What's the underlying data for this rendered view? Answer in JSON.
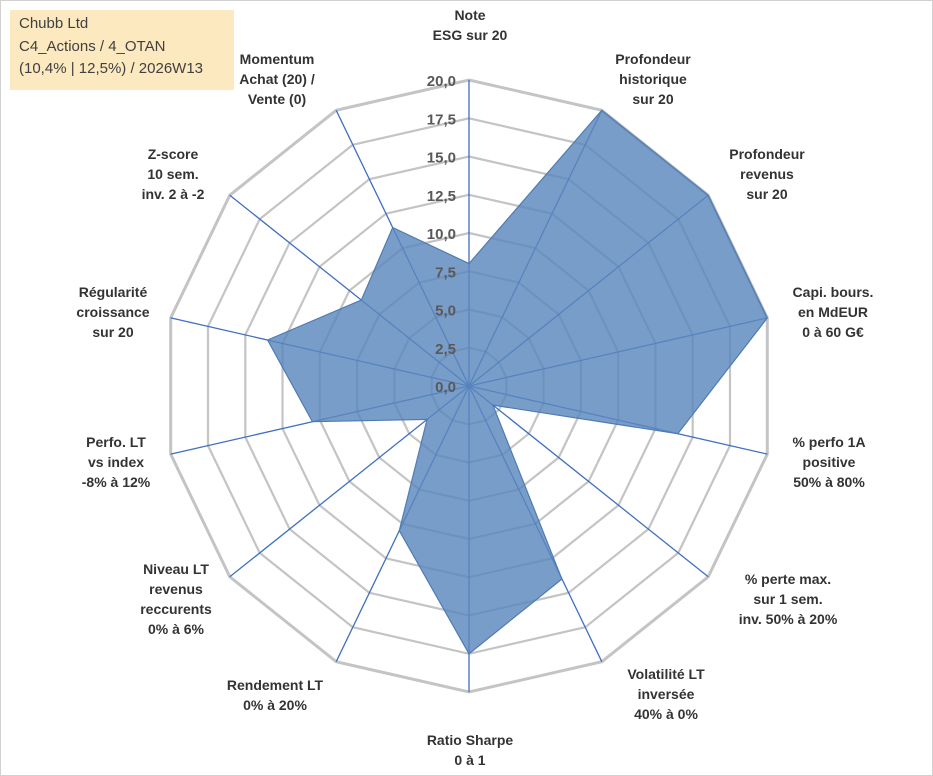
{
  "header": {
    "line1": "Chubb Ltd",
    "line2": "C4_Actions / 4_OTAN",
    "line3": "(10,4% | 12,5%) / 2026W13"
  },
  "colors": {
    "fill": "#5b88bd",
    "stroke": "#4f7bb3",
    "spoke": "#3f6fc0",
    "grid": "#c4c4c4",
    "header_bg": "#fde9c0"
  },
  "chart_data": {
    "type": "radar",
    "title": "",
    "range": [
      0,
      20
    ],
    "tick_step": 2.5,
    "tick_labels": [
      "0,0",
      "2,5",
      "5,0",
      "7,5",
      "10,0",
      "12,5",
      "15,0",
      "17,5",
      "20,0"
    ],
    "axes": [
      {
        "label": [
          "Note",
          "ESG sur 20"
        ],
        "value": 8
      },
      {
        "label": [
          "Profondeur",
          "historique",
          "sur 20"
        ],
        "value": 20
      },
      {
        "label": [
          "Profondeur",
          "revenus",
          "sur 20"
        ],
        "value": 20
      },
      {
        "label": [
          "Capi. bours.",
          "en MdEUR",
          "0 à 60 G€"
        ],
        "value": 20
      },
      {
        "label": [
          "% perfo 1A",
          "positive",
          "50% à 80%"
        ],
        "value": 14
      },
      {
        "label": [
          "% perte max.",
          "sur 1 sem.",
          "inv. 50% à 20%"
        ],
        "value": 2
      },
      {
        "label": [
          "Volatilité LT",
          "inversée",
          "40% à 0%"
        ],
        "value": 14
      },
      {
        "label": [
          "Ratio Sharpe",
          "0 à 1"
        ],
        "value": 17.5
      },
      {
        "label": [
          "Rendement LT",
          "0% à 20%"
        ],
        "value": 10.5
      },
      {
        "label": [
          "Niveau LT",
          "revenus",
          "reccurents",
          "0% à 6%"
        ],
        "value": 3.5
      },
      {
        "label": [
          "Perfo. LT",
          "vs index",
          "-8% à 12%"
        ],
        "value": 10.5
      },
      {
        "label": [
          "Régularité",
          "croissance",
          "sur 20"
        ],
        "value": 13.5
      },
      {
        "label": [
          "Z-score",
          "10 sem.",
          "inv. 2 à -2"
        ],
        "value": 9
      },
      {
        "label": [
          "Momentum",
          "Achat (20) /",
          "Vente (0)"
        ],
        "value": 11.5
      }
    ]
  }
}
